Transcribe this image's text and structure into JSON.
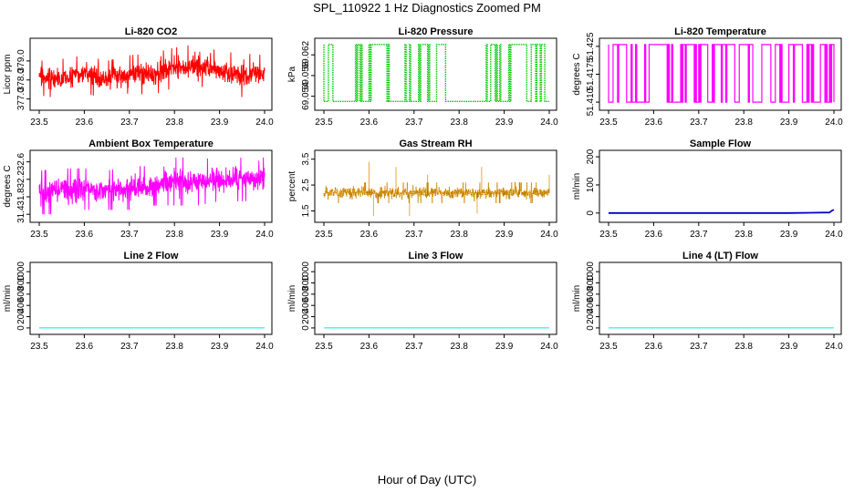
{
  "figure": {
    "title": "SPL_110922  1 Hz Diagnostics Zoomed PM",
    "xlabel": "Hour of Day (UTC)"
  },
  "chart_data": [
    {
      "type": "line",
      "title": "Li-820 CO2",
      "ylabel": "Licor ppm",
      "xlim": [
        23.5,
        24.0
      ],
      "ylim": [
        376.6,
        380.0
      ],
      "xticks": [
        23.5,
        23.6,
        23.7,
        23.8,
        23.9,
        24.0
      ],
      "yticks": [
        377.0,
        378.0,
        379.0
      ],
      "ytick_labels": [
        "377.0",
        "378.0",
        "379.0"
      ],
      "color": "#ff0000",
      "grid": false,
      "series": [
        {
          "x": [
            23.5,
            23.55,
            23.6,
            23.65,
            23.7,
            23.75,
            23.8,
            23.85,
            23.9,
            23.95,
            24.0
          ],
          "y": [
            378.2,
            378.0,
            378.3,
            378.1,
            378.4,
            378.3,
            378.6,
            378.8,
            378.5,
            378.3,
            378.2
          ],
          "min": [
            377.2,
            377.0,
            377.3,
            377.0,
            377.3,
            377.2,
            377.6,
            377.7,
            377.4,
            377.1,
            377.4
          ],
          "max": [
            379.2,
            379.1,
            379.3,
            379.0,
            379.3,
            379.4,
            379.7,
            379.9,
            379.5,
            379.4,
            379.3
          ]
        }
      ]
    },
    {
      "type": "line",
      "title": "Li-820 Pressure",
      "ylabel": "kPa",
      "xlim": [
        23.5,
        24.0
      ],
      "ylim": [
        69.052,
        69.0645
      ],
      "xticks": [
        23.5,
        23.6,
        23.7,
        23.8,
        23.9,
        24.0
      ],
      "yticks": [
        69.054,
        69.058,
        69.062
      ],
      "ytick_labels": [
        "69.054",
        "69.058",
        "69.062"
      ],
      "color": "#00c800",
      "grid": false,
      "series": [
        {
          "levels": [
            69.053,
            69.064
          ],
          "switch_x": [
            23.5,
            23.51,
            23.52,
            23.57,
            23.58,
            23.6,
            23.64,
            23.68,
            23.69,
            23.71,
            23.73,
            23.75,
            23.77,
            23.86,
            23.87,
            23.88,
            23.89,
            23.91,
            23.95,
            23.96,
            23.97,
            23.98,
            23.99
          ]
        }
      ]
    },
    {
      "type": "line",
      "title": "Li-820 Temperature",
      "ylabel": "degrees C",
      "xlim": [
        23.5,
        24.0
      ],
      "ylim": [
        51.4088,
        51.4262
      ],
      "xticks": [
        23.5,
        23.6,
        23.7,
        23.8,
        23.9,
        24.0
      ],
      "yticks": [
        51.41,
        51.4175,
        51.425
      ],
      "ytick_labels": [
        "51.410",
        "51.4175",
        "51.425"
      ],
      "color": "#ff00ff",
      "grid": false,
      "series": [
        {
          "levels": [
            51.41,
            51.4255
          ],
          "switch_x": [
            23.5,
            23.51,
            23.52,
            23.54,
            23.55,
            23.56,
            23.58,
            23.59,
            23.63,
            23.64,
            23.66,
            23.67,
            23.69,
            23.7,
            23.72,
            23.73,
            23.75,
            23.76,
            23.78,
            23.79,
            23.81,
            23.82,
            23.84,
            23.86,
            23.87,
            23.88,
            23.9,
            23.91,
            23.93,
            23.94,
            23.95,
            23.97,
            23.98,
            23.99,
            24.0
          ]
        }
      ]
    },
    {
      "type": "line",
      "title": "Ambient Box Temperature",
      "ylabel": "degrees C",
      "xlim": [
        23.5,
        24.0
      ],
      "ylim": [
        31.3,
        32.78
      ],
      "xticks": [
        23.5,
        23.6,
        23.7,
        23.8,
        23.9,
        24.0
      ],
      "yticks": [
        31.4,
        31.8,
        32.2,
        32.6
      ],
      "ytick_labels": [
        "31.4",
        "31.8",
        "32.2",
        "32.6"
      ],
      "color": "#ff00ff",
      "grid": false,
      "series": [
        {
          "x": [
            23.5,
            23.55,
            23.6,
            23.65,
            23.7,
            23.75,
            23.8,
            23.85,
            23.9,
            23.95,
            24.0
          ],
          "min": [
            31.4,
            31.4,
            31.5,
            31.5,
            31.5,
            31.6,
            31.6,
            31.6,
            31.7,
            31.7,
            31.7
          ],
          "max": [
            32.4,
            32.45,
            32.45,
            32.4,
            32.5,
            32.5,
            32.7,
            32.7,
            32.65,
            32.7,
            32.7
          ]
        }
      ]
    },
    {
      "type": "line",
      "title": "Gas Stream RH",
      "ylabel": "percent",
      "xlim": [
        23.5,
        24.0
      ],
      "ylim": [
        1.2,
        3.7
      ],
      "xticks": [
        23.5,
        23.6,
        23.7,
        23.8,
        23.9,
        24.0
      ],
      "yticks": [
        1.5,
        2.5,
        3.5
      ],
      "ytick_labels": [
        "1.5",
        "2.5",
        "3.5"
      ],
      "color": "#ffa500",
      "grid": false,
      "series": [
        {
          "x": [
            23.5,
            23.55,
            23.6,
            23.65,
            23.7,
            23.75,
            23.8,
            23.85,
            23.9,
            23.95,
            24.0
          ],
          "y": [
            2.2,
            2.2,
            2.2,
            2.2,
            2.2,
            2.2,
            2.2,
            2.2,
            2.2,
            2.2,
            2.2
          ],
          "min": [
            1.8,
            1.8,
            1.8,
            1.8,
            1.8,
            1.8,
            1.8,
            1.8,
            1.8,
            1.8,
            1.8
          ],
          "max": [
            2.6,
            2.6,
            2.6,
            2.6,
            2.6,
            2.6,
            2.6,
            2.6,
            2.6,
            2.6,
            2.6
          ],
          "spikes": [
            [
              23.6,
              3.4
            ],
            [
              23.61,
              1.3
            ],
            [
              23.66,
              3.2
            ],
            [
              23.69,
              1.3
            ],
            [
              23.73,
              2.9
            ],
            [
              23.85,
              3.2
            ],
            [
              23.84,
              1.4
            ],
            [
              24.0,
              2.9
            ]
          ]
        }
      ]
    },
    {
      "type": "line",
      "title": "Sample Flow",
      "ylabel": "ml/min",
      "xlim": [
        23.5,
        24.0
      ],
      "ylim": [
        -20,
        210
      ],
      "xticks": [
        23.5,
        23.6,
        23.7,
        23.8,
        23.9,
        24.0
      ],
      "yticks": [
        0,
        100,
        200
      ],
      "ytick_labels": [
        "0",
        "100",
        "200"
      ],
      "color": "#0000c8",
      "grid": false,
      "series": [
        {
          "x": [
            23.5,
            23.7,
            23.9,
            23.99,
            23.995,
            24.0
          ],
          "y": [
            0,
            0,
            0,
            2,
            8,
            12
          ]
        }
      ]
    },
    {
      "type": "line",
      "title": "Line 2 Flow",
      "ylabel": "ml/min",
      "xlim": [
        23.5,
        24.0
      ],
      "ylim": [
        -50,
        1100
      ],
      "xticks": [
        23.5,
        23.6,
        23.7,
        23.8,
        23.9,
        24.0
      ],
      "yticks": [
        0,
        200,
        400,
        600,
        800,
        1000
      ],
      "ytick_labels": [
        "0",
        "200",
        "400",
        "600",
        "800",
        "1000"
      ],
      "color": "#00e5ee",
      "grid": false,
      "series": [
        {
          "x": [
            23.5,
            24.0
          ],
          "y": [
            0,
            0
          ]
        }
      ]
    },
    {
      "type": "line",
      "title": "Line 3 Flow",
      "ylabel": "ml/min",
      "xlim": [
        23.5,
        24.0
      ],
      "ylim": [
        -50,
        1100
      ],
      "xticks": [
        23.5,
        23.6,
        23.7,
        23.8,
        23.9,
        24.0
      ],
      "yticks": [
        0,
        200,
        400,
        600,
        800,
        1000
      ],
      "ytick_labels": [
        "0",
        "200",
        "400",
        "600",
        "800",
        "1000"
      ],
      "color": "#00e5ee",
      "grid": false,
      "series": [
        {
          "x": [
            23.5,
            24.0
          ],
          "y": [
            0,
            0
          ]
        }
      ]
    },
    {
      "type": "line",
      "title": "Line 4 (LT) Flow",
      "ylabel": "ml/min",
      "xlim": [
        23.5,
        24.0
      ],
      "ylim": [
        -50,
        1100
      ],
      "xticks": [
        23.5,
        23.6,
        23.7,
        23.8,
        23.9,
        24.0
      ],
      "yticks": [
        0,
        200,
        400,
        600,
        800,
        1000
      ],
      "ytick_labels": [
        "0",
        "200",
        "400",
        "600",
        "800",
        "1000"
      ],
      "color": "#00e5ee",
      "grid": false,
      "series": [
        {
          "x": [
            23.5,
            24.0
          ],
          "y": [
            0,
            0
          ]
        }
      ]
    }
  ]
}
